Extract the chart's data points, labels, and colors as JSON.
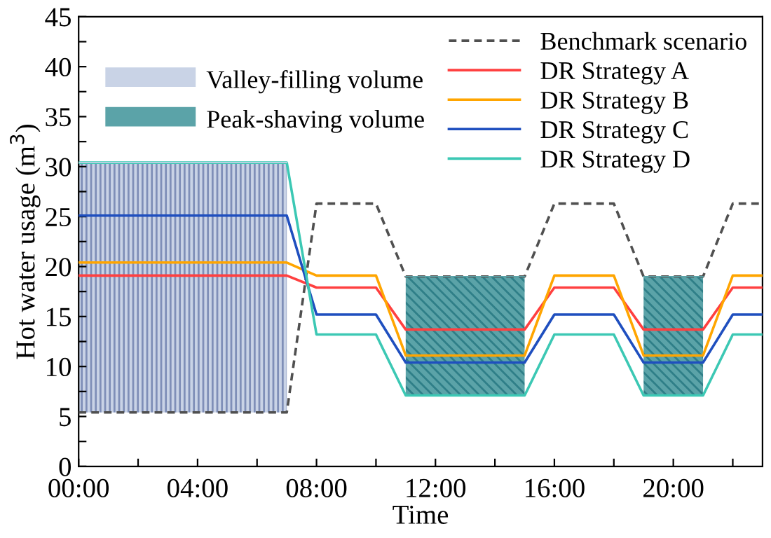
{
  "chart_data": {
    "type": "line",
    "xlabel": "Time",
    "ylabel": "Hot water usage (m$^{3}$)",
    "xlim": [
      0,
      23
    ],
    "ylim": [
      0,
      45
    ],
    "xticks": [
      {
        "value": 0,
        "label": "00:00"
      },
      {
        "value": 2,
        "label": null
      },
      {
        "value": 4,
        "label": "04:00"
      },
      {
        "value": 6,
        "label": null
      },
      {
        "value": 8,
        "label": "08:00"
      },
      {
        "value": 10,
        "label": null
      },
      {
        "value": 12,
        "label": "12:00"
      },
      {
        "value": 14,
        "label": null
      },
      {
        "value": 16,
        "label": "16:00"
      },
      {
        "value": 18,
        "label": null
      },
      {
        "value": 20,
        "label": "20:00"
      },
      {
        "value": 22,
        "label": null
      }
    ],
    "yticks": [
      0,
      {
        "value": 2.5,
        "label": null
      },
      5,
      {
        "value": 7.5,
        "label": null
      },
      10,
      {
        "value": 12.5,
        "label": null
      },
      15,
      {
        "value": 17.5,
        "label": null
      },
      20,
      {
        "value": 22.5,
        "label": null
      },
      25,
      {
        "value": 27.5,
        "label": null
      },
      30,
      {
        "value": 32.5,
        "label": null
      },
      35,
      {
        "value": 37.5,
        "label": null
      },
      40,
      {
        "value": 42.5,
        "label": null
      },
      45
    ],
    "grid": false,
    "legend": "top",
    "marker": "none",
    "series": [
      {
        "name": "Valley-filling volume",
        "type": "line",
        "color": "#c9d3e6",
        "x": [
          0,
          7
        ],
        "values": [
          30.4,
          30.4
        ],
        "lower": [
          5.4,
          5.4
        ],
        "upper": [
          30.4,
          30.4
        ]
      },
      {
        "name": "Peak-shaving volume",
        "type": "line",
        "color": "#5ba3a8",
        "x": [
          11,
          15,
          17,
          19,
          21
        ],
        "values": [
          19,
          19,
          null,
          19,
          19
        ],
        "lower": [
          7.1,
          7.1,
          null,
          7.1,
          7.1
        ],
        "upper": [
          19,
          19,
          null,
          19,
          19
        ]
      },
      {
        "name": "Benchmark scenario",
        "color": "#505050",
        "line_style": "dashed",
        "x": [
          0,
          7,
          8,
          10,
          11,
          15,
          16,
          18,
          19,
          21,
          22,
          23
        ],
        "values": [
          5.4,
          5.4,
          26.3,
          26.3,
          19,
          19,
          26.3,
          26.3,
          19,
          19,
          26.3,
          26.3
        ]
      },
      {
        "name": "DR Strategy A",
        "color": "#ff4040",
        "x": [
          0,
          7,
          8,
          10,
          11,
          15,
          16,
          18,
          19,
          21,
          22,
          23
        ],
        "values": [
          19.1,
          19.1,
          17.9,
          17.9,
          13.7,
          13.7,
          17.9,
          17.9,
          13.7,
          13.7,
          17.9,
          17.9
        ]
      },
      {
        "name": "DR Strategy B",
        "color": "#ffa500",
        "x": [
          0,
          7,
          8,
          10,
          11,
          15,
          16,
          18,
          19,
          21,
          22,
          23
        ],
        "values": [
          20.4,
          20.4,
          19.1,
          19.1,
          11.1,
          11.1,
          19.1,
          19.1,
          11.1,
          11.1,
          19.1,
          19.1
        ]
      },
      {
        "name": "DR Strategy C",
        "color": "#1f4fbf",
        "x": [
          0,
          7,
          8,
          10,
          11,
          15,
          16,
          18,
          19,
          21,
          22,
          23
        ],
        "values": [
          25.1,
          25.1,
          15.2,
          15.2,
          10.4,
          10.4,
          15.2,
          15.2,
          10.4,
          10.4,
          15.2,
          15.2
        ]
      },
      {
        "name": "DR Strategy D",
        "color": "#3cc8b4",
        "x": [
          0,
          7,
          8,
          10,
          11,
          15,
          16,
          18,
          19,
          21,
          22,
          23
        ],
        "values": [
          30.4,
          30.4,
          13.2,
          13.2,
          7.1,
          7.1,
          13.2,
          13.2,
          7.1,
          7.1,
          13.2,
          13.2
        ]
      }
    ]
  }
}
